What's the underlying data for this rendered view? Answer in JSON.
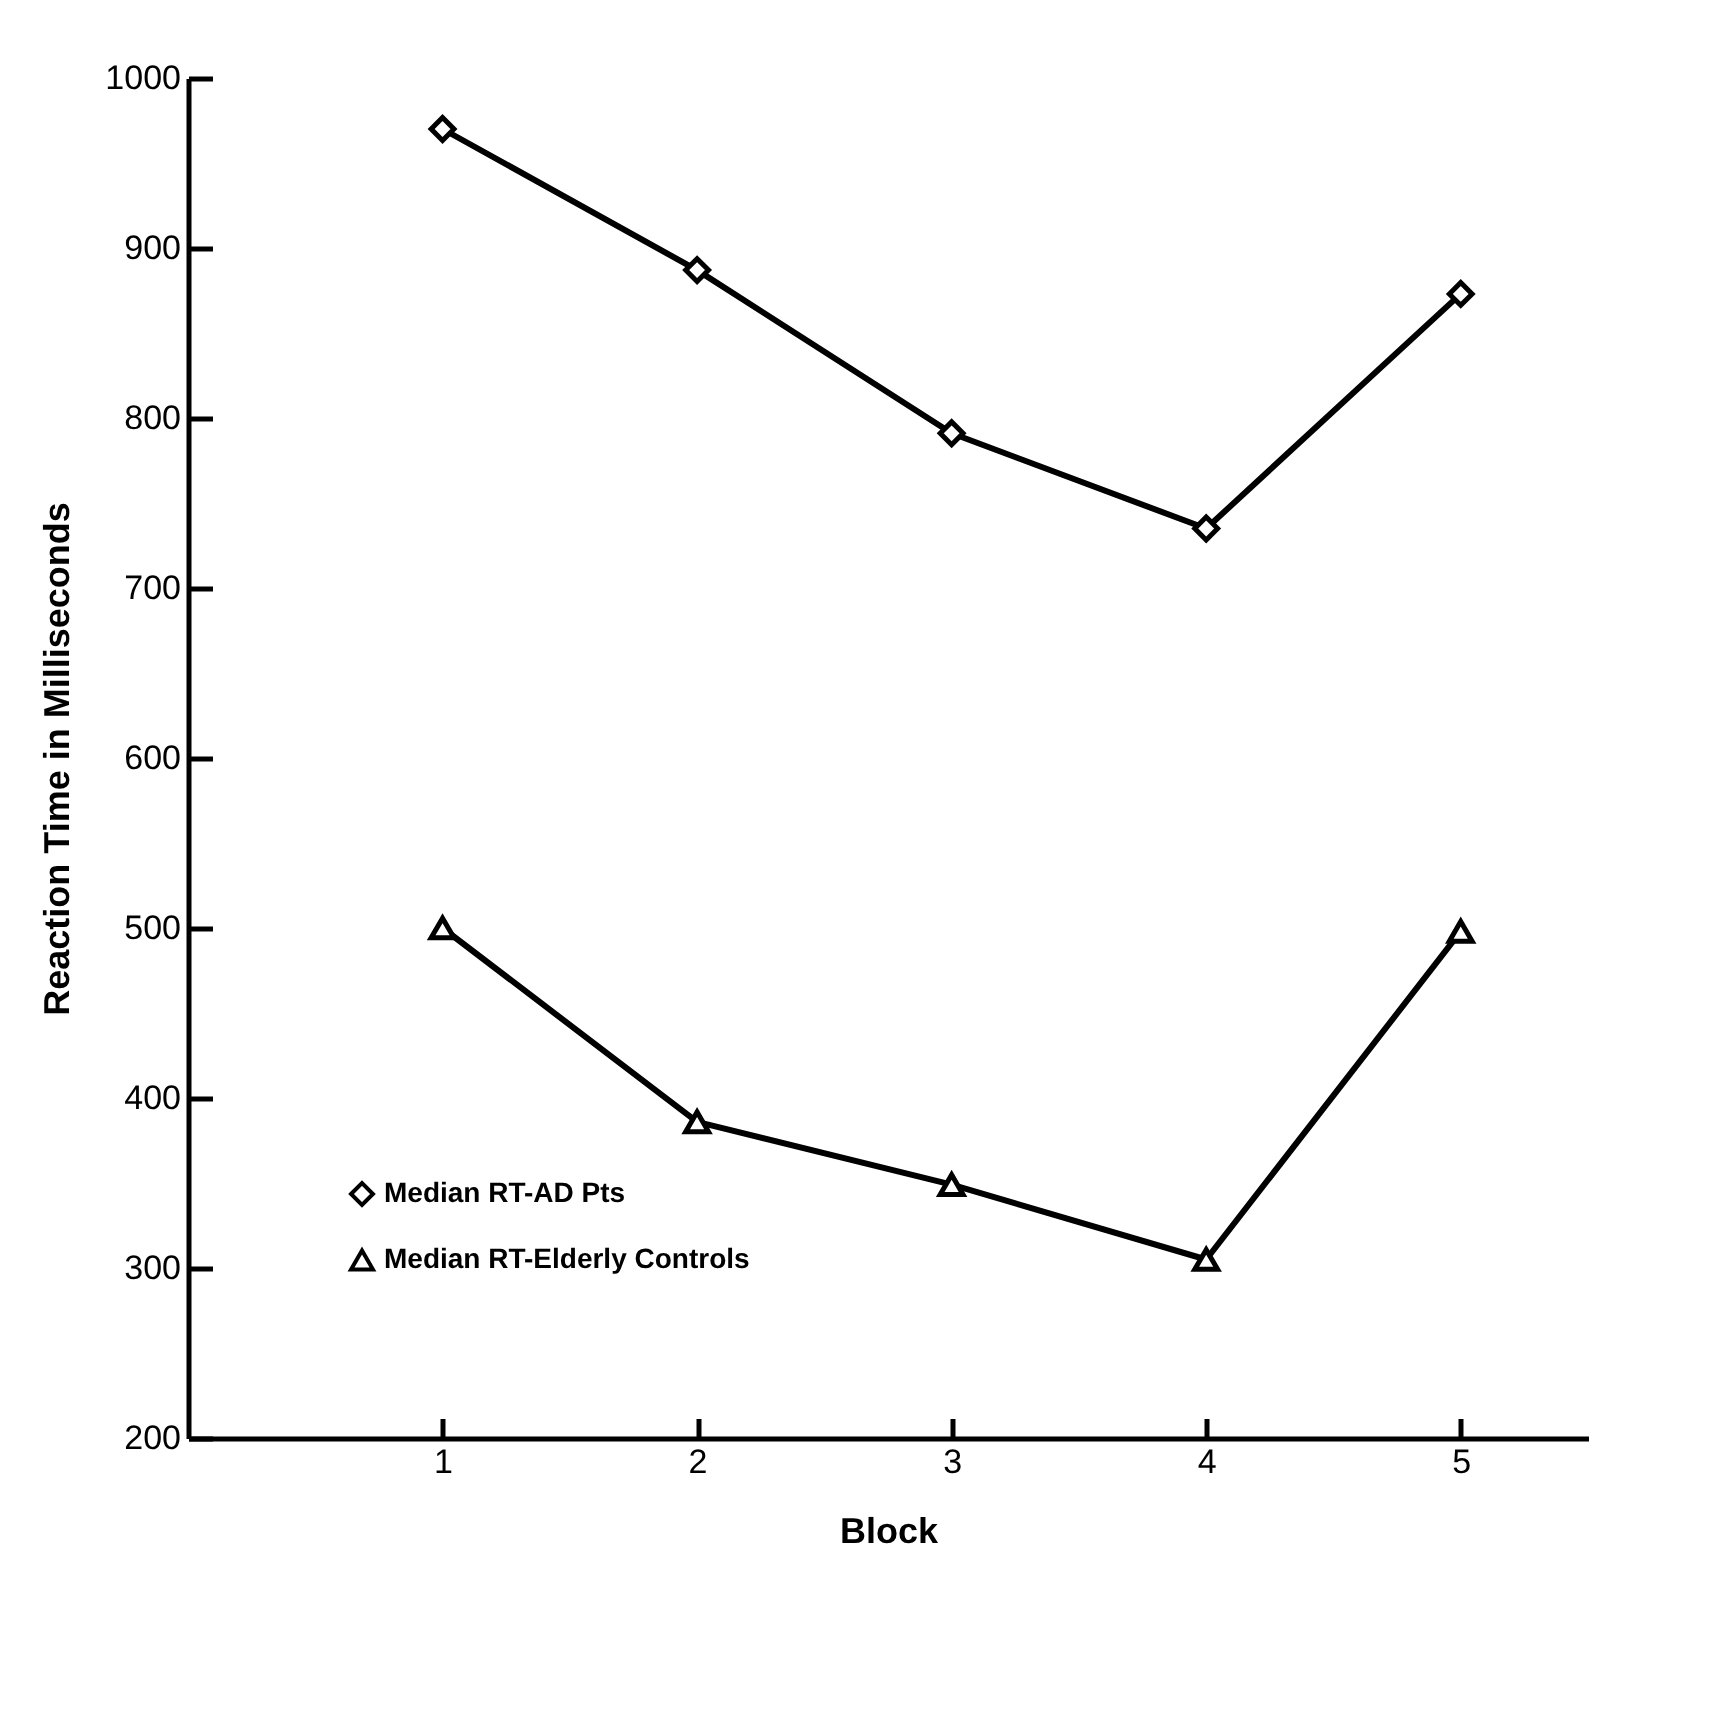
{
  "chart_data": {
    "type": "line",
    "xlabel": "Block",
    "ylabel": "Reaction Time in Milliseconds",
    "x": [
      1,
      2,
      3,
      4,
      5
    ],
    "series": [
      {
        "name": "Median RT-AD Pts",
        "color": "#000000",
        "marker": "diamond",
        "values": [
          970,
          887,
          791,
          735,
          873
        ]
      },
      {
        "name": "Median RT-Elderly Controls",
        "color": "#000000",
        "marker": "triangle",
        "values": [
          500,
          386,
          349,
          305,
          498
        ]
      }
    ],
    "xlim": [
      0,
      5.5
    ],
    "xticks": [
      1,
      2,
      3,
      4,
      5
    ],
    "ylim": [
      200,
      1000
    ],
    "yticks": [
      200,
      300,
      400,
      500,
      600,
      700,
      800,
      900,
      1000
    ],
    "grid": false,
    "legend": "bottom left",
    "line_style": "solid"
  }
}
